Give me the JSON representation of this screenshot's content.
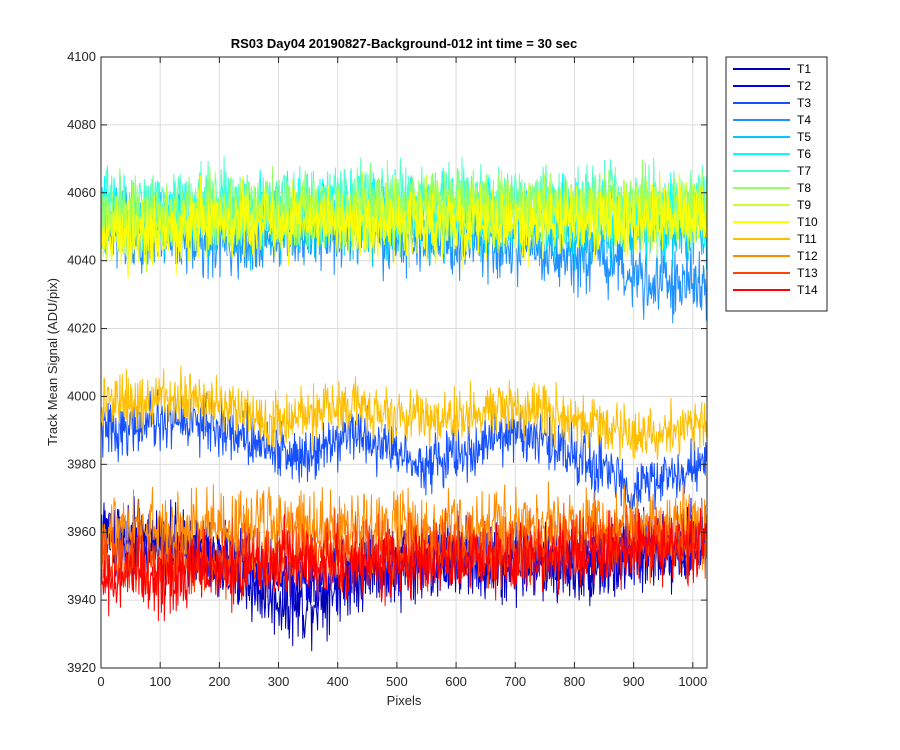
{
  "chart_data": {
    "type": "line",
    "title": "RS03 Day04 20190827-Background-012 int time = 30 sec",
    "xlabel": "Pixels",
    "ylabel": "Track Mean Signal (ADU/pix)",
    "xlim": [
      0,
      1024
    ],
    "ylim": [
      3920,
      4100
    ],
    "xticks": [
      0,
      100,
      200,
      300,
      400,
      500,
      600,
      700,
      800,
      900,
      1000
    ],
    "yticks": [
      3920,
      3940,
      3960,
      3980,
      4000,
      4020,
      4040,
      4060,
      4080,
      4100
    ],
    "grid": true,
    "legend_position": "outside-top-right",
    "series": [
      {
        "name": "T1",
        "color": "#0000b4",
        "level": 3950,
        "noise": 5.5,
        "trend": [
          [
            0,
            3960
          ],
          [
            150,
            3955
          ],
          [
            300,
            3940
          ],
          [
            340,
            3938
          ],
          [
            450,
            3950
          ],
          [
            600,
            3952
          ],
          [
            700,
            3950
          ],
          [
            850,
            3950
          ],
          [
            1024,
            3958
          ]
        ]
      },
      {
        "name": "T2",
        "color": "#0000e6",
        "level": 3950,
        "noise": 5,
        "trend": [
          [
            0,
            3958
          ],
          [
            200,
            3953
          ],
          [
            350,
            3945
          ],
          [
            500,
            3952
          ],
          [
            700,
            3953
          ],
          [
            900,
            3954
          ],
          [
            1024,
            3958
          ]
        ]
      },
      {
        "name": "T3",
        "color": "#1450ff",
        "level": 3985,
        "noise": 4,
        "trend": [
          [
            0,
            3990
          ],
          [
            150,
            3993
          ],
          [
            250,
            3988
          ],
          [
            330,
            3982
          ],
          [
            420,
            3990
          ],
          [
            550,
            3980
          ],
          [
            640,
            3985
          ],
          [
            700,
            3990
          ],
          [
            800,
            3983
          ],
          [
            900,
            3973
          ],
          [
            1024,
            3980
          ]
        ]
      },
      {
        "name": "T4",
        "color": "#1e90ff",
        "level": 4045,
        "noise": 5,
        "trend": [
          [
            0,
            4050
          ],
          [
            200,
            4045
          ],
          [
            400,
            4048
          ],
          [
            600,
            4045
          ],
          [
            800,
            4040
          ],
          [
            1024,
            4032
          ]
        ]
      },
      {
        "name": "T5",
        "color": "#00c8ff",
        "level": 4050,
        "noise": 5,
        "trend": [
          [
            0,
            4052
          ],
          [
            300,
            4050
          ],
          [
            600,
            4050
          ],
          [
            1024,
            4048
          ]
        ]
      },
      {
        "name": "T6",
        "color": "#00ffff",
        "level": 4055,
        "noise": 5,
        "trend": [
          [
            0,
            4055
          ],
          [
            500,
            4055
          ],
          [
            1024,
            4054
          ]
        ]
      },
      {
        "name": "T7",
        "color": "#50ffc8",
        "level": 4057,
        "noise": 5,
        "trend": [
          [
            0,
            4056
          ],
          [
            500,
            4058
          ],
          [
            1024,
            4057
          ]
        ]
      },
      {
        "name": "T8",
        "color": "#96ff64",
        "level": 4055,
        "noise": 5,
        "trend": [
          [
            0,
            4054
          ],
          [
            500,
            4056
          ],
          [
            1024,
            4056
          ]
        ]
      },
      {
        "name": "T9",
        "color": "#c8ff32",
        "level": 4053,
        "noise": 5,
        "trend": [
          [
            0,
            4050
          ],
          [
            500,
            4054
          ],
          [
            1024,
            4055
          ]
        ]
      },
      {
        "name": "T10",
        "color": "#ffff00",
        "level": 4050,
        "noise": 5,
        "trend": [
          [
            0,
            4045
          ],
          [
            200,
            4052
          ],
          [
            500,
            4050
          ],
          [
            1024,
            4052
          ]
        ]
      },
      {
        "name": "T11",
        "color": "#ffbe00",
        "level": 3995,
        "noise": 4,
        "trend": [
          [
            0,
            3997
          ],
          [
            150,
            4000
          ],
          [
            300,
            3993
          ],
          [
            430,
            3998
          ],
          [
            550,
            3993
          ],
          [
            700,
            3997
          ],
          [
            830,
            3992
          ],
          [
            900,
            3988
          ],
          [
            1024,
            3993
          ]
        ]
      },
      {
        "name": "T12",
        "color": "#ff8c00",
        "level": 3960,
        "noise": 5,
        "trend": [
          [
            0,
            3960
          ],
          [
            200,
            3963
          ],
          [
            500,
            3960
          ],
          [
            800,
            3962
          ],
          [
            1024,
            3962
          ]
        ]
      },
      {
        "name": "T13",
        "color": "#ff4600",
        "level": 3953,
        "noise": 5,
        "trend": [
          [
            0,
            3950
          ],
          [
            300,
            3953
          ],
          [
            600,
            3955
          ],
          [
            1024,
            3958
          ]
        ]
      },
      {
        "name": "T14",
        "color": "#ff0000",
        "level": 3950,
        "noise": 5,
        "trend": [
          [
            0,
            3945
          ],
          [
            150,
            3948
          ],
          [
            300,
            3952
          ],
          [
            500,
            3950
          ],
          [
            700,
            3953
          ],
          [
            900,
            3955
          ],
          [
            1024,
            3958
          ]
        ]
      }
    ]
  }
}
